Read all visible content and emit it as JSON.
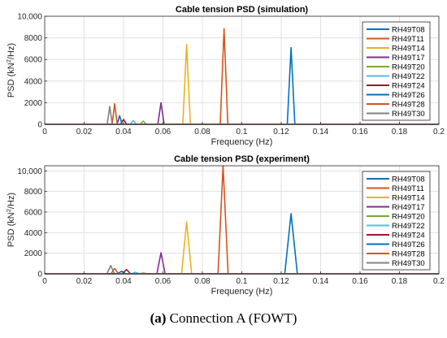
{
  "caption": {
    "label": "(a)",
    "text": " Connection A (FOWT)"
  },
  "chart_data": [
    {
      "type": "line",
      "title": "Cable tension PSD (simulation)",
      "xlabel": "Frequency (Hz)",
      "ylabel_base": "PSD (kN",
      "ylabel_sup": "2",
      "ylabel_tail": "/Hz)",
      "xlim": [
        0,
        0.2
      ],
      "ylim": [
        0,
        10000
      ],
      "xticks": [
        0,
        0.02,
        0.04,
        0.06,
        0.08,
        0.1,
        0.12,
        0.14,
        0.16,
        0.18,
        0.2
      ],
      "xtick_labels": [
        "0",
        "0.02",
        "0.04",
        "0.06",
        "0.08",
        "0.1",
        "0.12",
        "0.14",
        "0.16",
        "0.18",
        "0.2"
      ],
      "yticks": [
        0,
        2000,
        4000,
        6000,
        8000,
        10000
      ],
      "ytick_labels": [
        "0",
        "2000",
        "4000",
        "6000",
        "8000",
        "10,000"
      ],
      "grid": true,
      "legend_position": "right",
      "series": [
        {
          "name": "RH49T08",
          "color": "#0072BD",
          "peak_f": 0.125,
          "peak": 7100,
          "width": 0.0012
        },
        {
          "name": "RH49T11",
          "color": "#D95319",
          "peak_f": 0.091,
          "peak": 8850,
          "width": 0.0012
        },
        {
          "name": "RH49T14",
          "color": "#EDB120",
          "peak_f": 0.072,
          "peak": 7400,
          "width": 0.0012
        },
        {
          "name": "RH49T17",
          "color": "#7E2F8E",
          "peak_f": 0.059,
          "peak": 2000,
          "width": 0.001
        },
        {
          "name": "RH49T20",
          "color": "#77AC30",
          "peak_f": 0.05,
          "peak": 300,
          "width": 0.001
        },
        {
          "name": "RH49T22",
          "color": "#4DBEEE",
          "peak_f": 0.045,
          "peak": 350,
          "width": 0.001
        },
        {
          "name": "RH49T24",
          "color": "#A2142F",
          "peak_f": 0.04,
          "peak": 450,
          "width": 0.001
        },
        {
          "name": "RH49T26",
          "color": "#0072BD",
          "peak_f": 0.038,
          "peak": 800,
          "width": 0.0008
        },
        {
          "name": "RH49T28",
          "color": "#D95319",
          "peak_f": 0.0355,
          "peak": 1900,
          "width": 0.0008
        },
        {
          "name": "RH49T30",
          "color": "#808080",
          "peak_f": 0.033,
          "peak": 1650,
          "width": 0.0008
        }
      ]
    },
    {
      "type": "line",
      "title": "Cable tension PSD (experiment)",
      "xlabel": "Frequency (Hz)",
      "ylabel_base": "PSD (kN",
      "ylabel_sup": "2",
      "ylabel_tail": "/Hz)",
      "xlim": [
        0,
        0.2
      ],
      "ylim": [
        0,
        10500
      ],
      "xticks": [
        0,
        0.02,
        0.04,
        0.06,
        0.08,
        0.1,
        0.12,
        0.14,
        0.16,
        0.18,
        0.2
      ],
      "xtick_labels": [
        "0",
        "0.02",
        "0.04",
        "0.06",
        "0.08",
        "0.1",
        "0.12",
        "0.14",
        "0.16",
        "0.18",
        "0.2"
      ],
      "yticks": [
        0,
        2000,
        4000,
        6000,
        8000,
        10000
      ],
      "ytick_labels": [
        "0",
        "2000",
        "4000",
        "6000",
        "8000",
        "10,000"
      ],
      "grid": true,
      "legend_position": "right",
      "series": [
        {
          "name": "RH49T08",
          "color": "#0072BD",
          "peak_f": 0.125,
          "peak": 5850,
          "width": 0.002
        },
        {
          "name": "RH49T11",
          "color": "#D95319",
          "peak_f": 0.0905,
          "peak": 10500,
          "width": 0.0016
        },
        {
          "name": "RH49T14",
          "color": "#EDB120",
          "peak_f": 0.072,
          "peak": 5050,
          "width": 0.0016
        },
        {
          "name": "RH49T17",
          "color": "#7E2F8E",
          "peak_f": 0.059,
          "peak": 2050,
          "width": 0.0013
        },
        {
          "name": "RH49T20",
          "color": "#77AC30",
          "peak_f": 0.05,
          "peak": 80,
          "width": 0.0015
        },
        {
          "name": "RH49T22",
          "color": "#4DBEEE",
          "peak_f": 0.046,
          "peak": 150,
          "width": 0.0015
        },
        {
          "name": "RH49T24",
          "color": "#A2142F",
          "peak_f": 0.0415,
          "peak": 420,
          "width": 0.0013
        },
        {
          "name": "RH49T26",
          "color": "#0072BD",
          "peak_f": 0.039,
          "peak": 250,
          "width": 0.0013
        },
        {
          "name": "RH49T28",
          "color": "#D95319",
          "peak_f": 0.0355,
          "peak": 520,
          "width": 0.0012
        },
        {
          "name": "RH49T30",
          "color": "#808080",
          "peak_f": 0.0335,
          "peak": 800,
          "width": 0.0012
        }
      ]
    }
  ]
}
